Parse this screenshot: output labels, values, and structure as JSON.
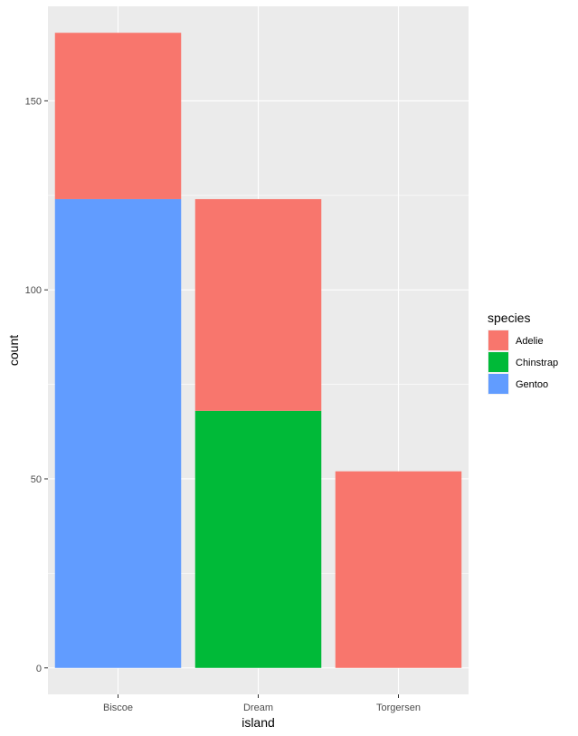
{
  "chart_data": {
    "type": "bar",
    "stacked": true,
    "categories": [
      "Biscoe",
      "Dream",
      "Torgersen"
    ],
    "series": [
      {
        "name": "Gentoo",
        "values": [
          124,
          0,
          0
        ],
        "color": "#619CFF"
      },
      {
        "name": "Chinstrap",
        "values": [
          0,
          68,
          0
        ],
        "color": "#00BA38"
      },
      {
        "name": "Adelie",
        "values": [
          44,
          56,
          52
        ],
        "color": "#F8766D"
      }
    ],
    "legend_order": [
      "Adelie",
      "Chinstrap",
      "Gentoo"
    ],
    "xlabel": "island",
    "ylabel": "count",
    "legend_title": "species",
    "legend_position": "right",
    "yticks": [
      0,
      50,
      100,
      150
    ],
    "ylim": [
      -7,
      175
    ],
    "grid": true,
    "panel_background": "#EBEBEB",
    "grid_color": "#FFFFFF"
  }
}
